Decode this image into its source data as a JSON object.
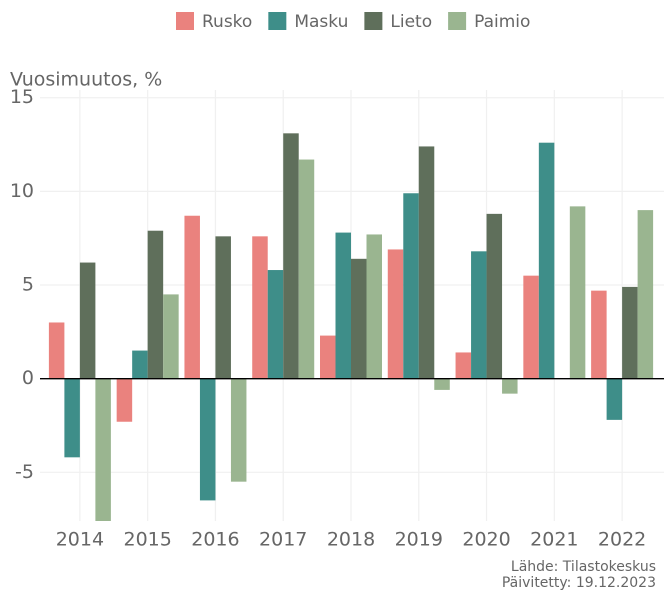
{
  "chart_data": {
    "type": "bar",
    "y_axis_label": "Vuosimuutos, %",
    "categories": [
      "2014",
      "2015",
      "2016",
      "2017",
      "2018",
      "2019",
      "2020",
      "2021",
      "2022"
    ],
    "series": [
      {
        "name": "Rusko",
        "color": "#ea827e",
        "values": [
          3.0,
          -2.3,
          8.7,
          7.6,
          2.3,
          6.9,
          1.4,
          5.5,
          4.7
        ]
      },
      {
        "name": "Masku",
        "color": "#3e8e89",
        "values": [
          -4.2,
          1.5,
          -6.5,
          5.8,
          7.8,
          9.9,
          6.8,
          12.6,
          -2.2
        ]
      },
      {
        "name": "Lieto",
        "color": "#5f6f5b",
        "values": [
          6.2,
          7.9,
          7.6,
          13.1,
          6.4,
          12.4,
          8.8,
          null,
          4.9
        ]
      },
      {
        "name": "Paimio",
        "color": "#9ab590",
        "values": [
          -7.6,
          4.5,
          -5.5,
          11.7,
          7.7,
          -0.6,
          -0.8,
          9.2,
          9.0
        ]
      }
    ],
    "ylim": [
      -7.6,
      15.2
    ],
    "yticks": [
      -5,
      0,
      5,
      10,
      15
    ],
    "grid": true,
    "source": "Lähde: Tilastokeskus",
    "updated": "Päivitetty: 19.12.2023"
  }
}
